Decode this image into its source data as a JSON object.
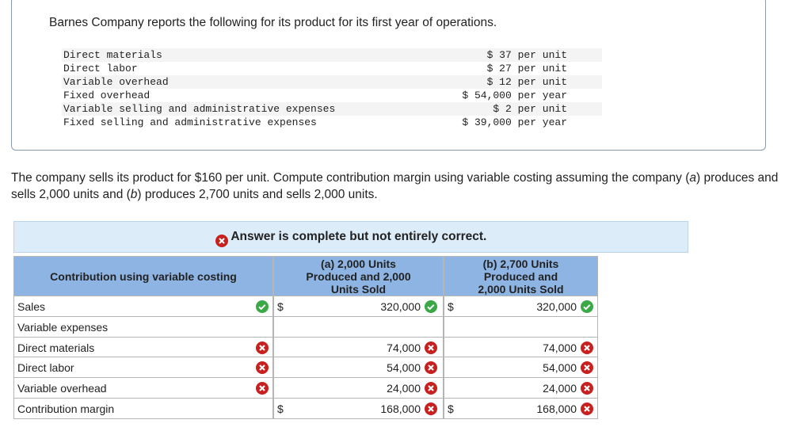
{
  "intro": "Barnes Company reports the following for its product for its first year of operations.",
  "costs": [
    [
      "Direct materials",
      "$ 37 per unit"
    ],
    [
      "Direct labor",
      "$ 27 per unit"
    ],
    [
      "Variable overhead",
      "$ 12 per unit"
    ],
    [
      "Fixed overhead",
      "$ 54,000 per year"
    ],
    [
      "Variable selling and administrative expenses",
      "$ 2 per unit"
    ],
    [
      "Fixed selling and administrative expenses",
      "$ 39,000 per year"
    ]
  ],
  "question": [
    "The company sells its product for $160 per unit. Compute contribution margin using variable costing assuming the company (",
    "a",
    ") produces and sells 2,000 units and (",
    "b",
    ") produces 2,700 units and sells 2,000 units."
  ],
  "banner": "Answer is complete but not entirely correct.",
  "table": {
    "header": [
      "Contribution using variable costing",
      "(a) 2,000 Units Produced and 2,000 Units Sold",
      "(b) 2,700 Units Produced and 2,000 Units Sold"
    ],
    "rows": [
      {
        "label": "Sales",
        "status": "correct",
        "a": {
          "currency": "$",
          "value": "320,000",
          "status": "correct"
        },
        "b": {
          "currency": "$",
          "value": "320,000",
          "status": "correct"
        }
      },
      {
        "label": "Variable expenses"
      },
      {
        "label": "Direct materials",
        "status": "incorrect",
        "a": {
          "value": "74,000",
          "status": "incorrect"
        },
        "b": {
          "value": "74,000",
          "status": "incorrect"
        }
      },
      {
        "label": "Direct labor",
        "status": "incorrect",
        "a": {
          "value": "54,000",
          "status": "incorrect"
        },
        "b": {
          "value": "54,000",
          "status": "incorrect"
        }
      },
      {
        "label": "Variable overhead",
        "status": "incorrect",
        "a": {
          "value": "24,000",
          "status": "incorrect"
        },
        "b": {
          "value": "24,000",
          "status": "incorrect"
        }
      },
      {
        "label": "Contribution margin",
        "a": {
          "currency": "$",
          "value": "168,000",
          "status": "incorrect"
        },
        "b": {
          "currency": "$",
          "value": "168,000",
          "status": "incorrect"
        }
      }
    ]
  }
}
